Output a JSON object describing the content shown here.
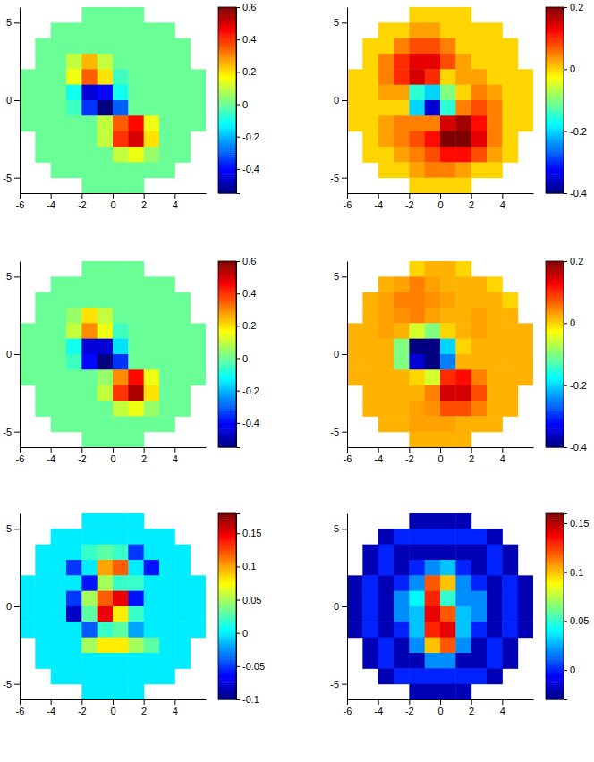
{
  "chart_data": [
    {
      "type": "heatmap",
      "xlim": [
        -6,
        6
      ],
      "ylim": [
        -6,
        6
      ],
      "xticks": [
        -6,
        -4,
        -2,
        0,
        2,
        4
      ],
      "yticks": [
        -5,
        0,
        5
      ],
      "x": [
        -5.5,
        -4.5,
        -3.5,
        -2.5,
        -1.5,
        -0.5,
        0.5,
        1.5,
        2.5,
        3.5,
        4.5,
        5.5
      ],
      "y": [
        5.5,
        4.5,
        3.5,
        2.5,
        1.5,
        0.5,
        -0.5,
        -1.5,
        -2.5,
        -3.5,
        -4.5,
        -5.5
      ],
      "z": [
        [
          null,
          null,
          null,
          null,
          0,
          0,
          0,
          0,
          null,
          null,
          null,
          null
        ],
        [
          null,
          null,
          0,
          0,
          0,
          0,
          0,
          0,
          0,
          0,
          null,
          null
        ],
        [
          null,
          0,
          0,
          0,
          0,
          0,
          0,
          0,
          0,
          0,
          0,
          null
        ],
        [
          null,
          0,
          0,
          0.1,
          0.25,
          0.1,
          0,
          0,
          0,
          0,
          0,
          null
        ],
        [
          0,
          0,
          0,
          0.15,
          0.35,
          0.2,
          -0.05,
          0,
          0,
          0,
          0,
          0
        ],
        [
          0,
          0,
          0,
          -0.1,
          -0.45,
          -0.4,
          -0.1,
          0,
          0,
          0,
          0,
          0
        ],
        [
          0,
          0,
          0,
          -0.05,
          -0.35,
          -0.55,
          -0.3,
          0,
          0,
          0,
          0,
          0
        ],
        [
          0,
          0,
          0,
          0,
          0,
          0.1,
          0.35,
          0.45,
          0.15,
          0,
          0,
          0
        ],
        [
          null,
          0,
          0,
          0,
          0,
          0.1,
          0.4,
          0.5,
          0.2,
          0,
          0,
          null
        ],
        [
          null,
          0,
          0,
          0,
          0,
          0,
          0.1,
          0.15,
          0.05,
          0,
          0,
          null
        ],
        [
          null,
          null,
          0,
          0,
          0,
          0,
          0,
          0,
          0,
          0,
          null,
          null
        ],
        [
          null,
          null,
          null,
          null,
          0,
          0,
          0,
          0,
          null,
          null,
          null,
          null
        ]
      ],
      "colorbar": {
        "range": [
          -0.55,
          0.6
        ],
        "ticks": [
          -0.4,
          -0.2,
          0,
          0.2,
          0.4,
          0.6
        ]
      }
    },
    {
      "type": "heatmap",
      "xlim": [
        -6,
        6
      ],
      "ylim": [
        -6,
        6
      ],
      "xticks": [
        -6,
        -4,
        -2,
        0,
        2,
        4
      ],
      "yticks": [
        -5,
        0,
        5
      ],
      "x": [
        -5.5,
        -4.5,
        -3.5,
        -2.5,
        -1.5,
        -0.5,
        0.5,
        1.5,
        2.5,
        3.5,
        4.5,
        5.5
      ],
      "y": [
        5.5,
        4.5,
        3.5,
        2.5,
        1.5,
        0.5,
        -0.5,
        -1.5,
        -2.5,
        -3.5,
        -4.5,
        -5.5
      ],
      "z": [
        [
          null,
          null,
          null,
          null,
          0,
          0,
          0,
          0,
          null,
          null,
          null,
          null
        ],
        [
          null,
          null,
          0,
          0,
          0.03,
          0.03,
          0,
          0,
          0,
          0,
          null,
          null
        ],
        [
          null,
          0,
          0,
          0.05,
          0.08,
          0.08,
          0.05,
          0,
          0,
          0,
          0,
          null
        ],
        [
          null,
          0,
          0.05,
          0.1,
          0.14,
          0.14,
          0.08,
          0.03,
          0,
          0,
          0,
          null
        ],
        [
          0,
          0,
          0.05,
          0.1,
          0.15,
          0.1,
          0,
          0.03,
          0.03,
          0,
          0,
          0
        ],
        [
          0,
          0,
          0.03,
          0.03,
          -0.15,
          -0.2,
          -0.1,
          0,
          0.05,
          0.03,
          0,
          0
        ],
        [
          0,
          0,
          0,
          0,
          -0.2,
          -0.35,
          -0.15,
          0.05,
          0.08,
          0.05,
          0,
          0
        ],
        [
          0,
          0,
          0.03,
          0.05,
          0.05,
          0.05,
          0.15,
          0.18,
          0.12,
          0.05,
          0,
          0
        ],
        [
          null,
          0,
          0.03,
          0.05,
          0.08,
          0.12,
          0.2,
          0.2,
          0.14,
          0.05,
          0,
          null
        ],
        [
          null,
          0,
          0,
          0.03,
          0.05,
          0.08,
          0.12,
          0.12,
          0.08,
          0.03,
          0,
          null
        ],
        [
          null,
          null,
          0,
          0,
          0.03,
          0.05,
          0.05,
          0.03,
          0,
          0,
          null,
          null
        ],
        [
          null,
          null,
          null,
          null,
          0,
          0,
          0,
          0,
          null,
          null,
          null,
          null
        ]
      ],
      "colorbar": {
        "range": [
          -0.4,
          0.2
        ],
        "ticks": [
          -0.4,
          -0.2,
          0,
          0.2
        ]
      }
    },
    {
      "type": "heatmap",
      "xlim": [
        -6,
        6
      ],
      "ylim": [
        -6,
        6
      ],
      "xticks": [
        -6,
        -4,
        -2,
        0,
        2,
        4
      ],
      "yticks": [
        -5,
        0,
        5
      ],
      "x": [
        -5.5,
        -4.5,
        -3.5,
        -2.5,
        -1.5,
        -0.5,
        0.5,
        1.5,
        2.5,
        3.5,
        4.5,
        5.5
      ],
      "y": [
        5.5,
        4.5,
        3.5,
        2.5,
        1.5,
        0.5,
        -0.5,
        -1.5,
        -2.5,
        -3.5,
        -4.5,
        -5.5
      ],
      "z": [
        [
          null,
          null,
          null,
          null,
          0,
          0,
          0,
          0,
          null,
          null,
          null,
          null
        ],
        [
          null,
          null,
          0,
          0,
          0,
          0,
          0,
          0,
          0,
          0,
          null,
          null
        ],
        [
          null,
          0,
          0,
          0,
          0,
          0,
          0,
          0,
          0,
          0,
          0,
          null
        ],
        [
          null,
          0,
          0,
          0.05,
          0.2,
          0.1,
          0,
          0,
          0,
          0,
          0,
          null
        ],
        [
          0,
          0,
          0,
          0.1,
          0.3,
          0.15,
          -0.05,
          0,
          0,
          0,
          0,
          0
        ],
        [
          0,
          0,
          0,
          -0.1,
          -0.45,
          -0.45,
          -0.15,
          0,
          0,
          0,
          0,
          0
        ],
        [
          0,
          0,
          0,
          -0.05,
          -0.4,
          -0.55,
          -0.35,
          0,
          0,
          0,
          0,
          0
        ],
        [
          0,
          0,
          0,
          0,
          0,
          0.05,
          0.3,
          0.45,
          0.15,
          0,
          0,
          0
        ],
        [
          null,
          0,
          0,
          0,
          0,
          0.1,
          0.4,
          0.55,
          0.2,
          0,
          0,
          null
        ],
        [
          null,
          0,
          0,
          0,
          0,
          0,
          0.1,
          0.15,
          0.05,
          0,
          0,
          null
        ],
        [
          null,
          null,
          0,
          0,
          0,
          0,
          0,
          0,
          0,
          0,
          null,
          null
        ],
        [
          null,
          null,
          null,
          null,
          0,
          0,
          0,
          0,
          null,
          null,
          null,
          null
        ]
      ],
      "colorbar": {
        "range": [
          -0.55,
          0.6
        ],
        "ticks": [
          -0.4,
          -0.2,
          0,
          0.2,
          0.4,
          0.6
        ]
      }
    },
    {
      "type": "heatmap",
      "xlim": [
        -6,
        6
      ],
      "ylim": [
        -6,
        6
      ],
      "xticks": [
        -6,
        -4,
        -2,
        0,
        2,
        4
      ],
      "yticks": [
        -5,
        0,
        5
      ],
      "x": [
        -5.5,
        -4.5,
        -3.5,
        -2.5,
        -1.5,
        -0.5,
        0.5,
        1.5,
        2.5,
        3.5,
        4.5,
        5.5
      ],
      "y": [
        5.5,
        4.5,
        3.5,
        2.5,
        1.5,
        0.5,
        -0.5,
        -1.5,
        -2.5,
        -3.5,
        -4.5,
        -5.5
      ],
      "z": [
        [
          null,
          null,
          null,
          null,
          0,
          0.02,
          0.02,
          0,
          null,
          null,
          null,
          null
        ],
        [
          null,
          null,
          0.02,
          0.03,
          0.05,
          0.03,
          0.02,
          0.02,
          0.02,
          0,
          null,
          null
        ],
        [
          null,
          0.02,
          0.03,
          0.05,
          0.05,
          0.04,
          0.03,
          0.02,
          0.02,
          0.02,
          0,
          null
        ],
        [
          null,
          0.02,
          0.03,
          0.04,
          0.05,
          0.03,
          0.02,
          0.02,
          0.03,
          0.02,
          0.02,
          null
        ],
        [
          0.02,
          0.02,
          0.03,
          0.02,
          -0.05,
          -0.1,
          0,
          0.02,
          0.03,
          0.02,
          0.02,
          0.02
        ],
        [
          0.02,
          0.02,
          0.02,
          -0.1,
          -0.4,
          -0.4,
          -0.2,
          0,
          0.02,
          0.02,
          0.02,
          0.02
        ],
        [
          0.02,
          0.02,
          0.02,
          -0.1,
          -0.35,
          -0.4,
          -0.25,
          0.02,
          0.02,
          0.02,
          0.02,
          0.02
        ],
        [
          0.02,
          0.02,
          0.02,
          0.02,
          0,
          -0.05,
          0.1,
          0.12,
          0.05,
          0.02,
          0.02,
          0.02
        ],
        [
          null,
          0.02,
          0.02,
          0.02,
          0.02,
          0.05,
          0.15,
          0.15,
          0.08,
          0.02,
          0.02,
          null
        ],
        [
          null,
          0.02,
          0.02,
          0.02,
          0.03,
          0.04,
          0.08,
          0.08,
          0.05,
          0.02,
          0.02,
          null
        ],
        [
          null,
          null,
          0.02,
          0.02,
          0.03,
          0.03,
          0.03,
          0.02,
          0.02,
          0.02,
          null,
          null
        ],
        [
          null,
          null,
          null,
          null,
          0.02,
          0.02,
          0.02,
          0.02,
          null,
          null,
          null,
          null
        ]
      ],
      "colorbar": {
        "range": [
          -0.4,
          0.2
        ],
        "ticks": [
          -0.4,
          -0.2,
          0,
          0.2
        ]
      }
    },
    {
      "type": "heatmap",
      "xlim": [
        -6,
        6
      ],
      "ylim": [
        -6,
        6
      ],
      "xticks": [
        -6,
        -4,
        -2,
        0,
        2,
        4
      ],
      "yticks": [
        -5,
        0,
        5
      ],
      "x": [
        -5.5,
        -4.5,
        -3.5,
        -2.5,
        -1.5,
        -0.5,
        0.5,
        1.5,
        2.5,
        3.5,
        4.5,
        5.5
      ],
      "y": [
        5.5,
        4.5,
        3.5,
        2.5,
        1.5,
        0.5,
        -0.5,
        -1.5,
        -2.5,
        -3.5,
        -4.5,
        -5.5
      ],
      "z": [
        [
          null,
          null,
          null,
          null,
          0,
          0,
          0,
          0,
          null,
          null,
          null,
          null
        ],
        [
          null,
          null,
          0,
          0,
          0,
          0,
          0,
          0,
          0,
          0,
          null,
          null
        ],
        [
          null,
          0,
          0,
          0,
          0.02,
          0.03,
          0.02,
          -0.05,
          0,
          0,
          0,
          null
        ],
        [
          null,
          0,
          0,
          -0.05,
          0,
          0.1,
          0.12,
          0,
          -0.06,
          0,
          0,
          null
        ],
        [
          0,
          0,
          0,
          0,
          -0.06,
          0.05,
          0.02,
          0.02,
          0,
          0,
          0,
          0
        ],
        [
          0,
          0,
          0,
          -0.05,
          0.05,
          0.12,
          0.15,
          -0.06,
          0,
          0,
          0,
          0
        ],
        [
          0,
          0,
          0,
          -0.08,
          0.03,
          0.15,
          0.08,
          0.02,
          0,
          0,
          0,
          0
        ],
        [
          0,
          0,
          0,
          0,
          -0.04,
          0.02,
          0.03,
          -0.02,
          0,
          0,
          0,
          0
        ],
        [
          null,
          0,
          0,
          0,
          0.05,
          0.08,
          0.08,
          0.05,
          0.03,
          0,
          0,
          null
        ],
        [
          null,
          0,
          0,
          0,
          0,
          0,
          0,
          0,
          0,
          0,
          0,
          null
        ],
        [
          null,
          null,
          0,
          0,
          0,
          0,
          0,
          0,
          0,
          0,
          null,
          null
        ],
        [
          null,
          null,
          null,
          null,
          0,
          0,
          0,
          0,
          null,
          null,
          null,
          null
        ]
      ],
      "colorbar": {
        "range": [
          -0.1,
          0.18
        ],
        "ticks": [
          -0.1,
          -0.05,
          0,
          0.05,
          0.1,
          0.15
        ]
      }
    },
    {
      "type": "heatmap",
      "xlim": [
        -6,
        6
      ],
      "ylim": [
        -6,
        6
      ],
      "xticks": [
        -6,
        -4,
        -2,
        0,
        2,
        4
      ],
      "yticks": [
        -5,
        0,
        5
      ],
      "x": [
        -5.5,
        -4.5,
        -3.5,
        -2.5,
        -1.5,
        -0.5,
        0.5,
        1.5,
        2.5,
        3.5,
        4.5,
        5.5
      ],
      "y": [
        5.5,
        4.5,
        3.5,
        2.5,
        1.5,
        0.5,
        -0.5,
        -1.5,
        -2.5,
        -3.5,
        -4.5,
        -5.5
      ],
      "z": [
        [
          null,
          null,
          null,
          null,
          -0.02,
          -0.02,
          -0.02,
          -0.02,
          null,
          null,
          null,
          null
        ],
        [
          null,
          null,
          -0.02,
          0,
          0,
          0,
          0,
          0,
          0,
          -0.02,
          null,
          null
        ],
        [
          null,
          -0.02,
          0,
          -0.02,
          -0.02,
          -0.02,
          -0.02,
          -0.02,
          -0.02,
          0,
          -0.02,
          null
        ],
        [
          null,
          -0.02,
          0,
          -0.02,
          0,
          0.02,
          0.03,
          0,
          -0.02,
          0,
          -0.02,
          null
        ],
        [
          -0.02,
          0,
          -0.02,
          0,
          0.02,
          0.12,
          0.1,
          0.02,
          0,
          -0.02,
          0,
          -0.02
        ],
        [
          -0.02,
          0,
          -0.02,
          0.02,
          0.04,
          0.13,
          0.05,
          0.02,
          0.02,
          -0.02,
          0,
          -0.02
        ],
        [
          -0.02,
          0,
          -0.02,
          0.02,
          0.03,
          0.14,
          0.12,
          0.03,
          0.02,
          -0.02,
          0,
          -0.02
        ],
        [
          -0.02,
          0,
          -0.02,
          0,
          0.03,
          0.13,
          0.14,
          0.03,
          0,
          -0.02,
          0,
          -0.02
        ],
        [
          null,
          -0.02,
          0,
          -0.02,
          0.02,
          0.1,
          0.12,
          0.02,
          -0.02,
          0,
          -0.02,
          null
        ],
        [
          null,
          -0.02,
          0,
          -0.02,
          -0.02,
          0.02,
          0.02,
          -0.02,
          -0.02,
          0,
          -0.02,
          null
        ],
        [
          null,
          null,
          -0.02,
          0,
          0,
          0,
          0,
          0,
          0,
          -0.02,
          null,
          null
        ],
        [
          null,
          null,
          null,
          null,
          -0.02,
          -0.02,
          -0.02,
          -0.02,
          null,
          null,
          null,
          null
        ]
      ],
      "colorbar": {
        "range": [
          -0.03,
          0.16
        ],
        "ticks": [
          0,
          0.05,
          0.1,
          0.15
        ]
      }
    }
  ]
}
